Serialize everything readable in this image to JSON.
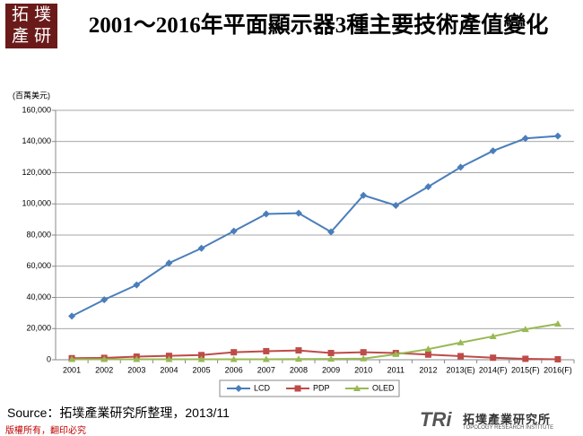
{
  "chart_data": {
    "type": "line",
    "title": "2001～2016年平面顯示器3種主要技術產值變化",
    "y_label": "(百萬美元)",
    "categories": [
      "2001",
      "2002",
      "2003",
      "2004",
      "2005",
      "2006",
      "2007",
      "2008",
      "2009",
      "2010",
      "2011",
      "2012",
      "2013(E)",
      "2014(F)",
      "2015(F)",
      "2016(F)"
    ],
    "series": [
      {
        "name": "LCD",
        "color": "#4a7ebb",
        "marker": "diamond",
        "values": [
          28000,
          38500,
          48000,
          62000,
          71500,
          82500,
          93500,
          94000,
          82000,
          105500,
          99000,
          111000,
          123500,
          134000,
          142000,
          143500
        ]
      },
      {
        "name": "PDP",
        "color": "#be4b48",
        "marker": "square",
        "values": [
          1000,
          1200,
          2000,
          2500,
          3000,
          4800,
          5500,
          6000,
          4300,
          4800,
          4300,
          3300,
          2300,
          1300,
          600,
          300
        ]
      },
      {
        "name": "OLED",
        "color": "#98b954",
        "marker": "triangle",
        "values": [
          300,
          300,
          300,
          300,
          300,
          300,
          300,
          400,
          500,
          700,
          3500,
          6800,
          11000,
          15000,
          19500,
          23000
        ]
      }
    ],
    "ylim": [
      0,
      160000
    ],
    "yticks": [
      0,
      {
        "value": 20000,
        "label": "20,000"
      },
      {
        "value": 40000,
        "label": "40,000"
      },
      {
        "value": 60000,
        "label": "60,000"
      },
      {
        "value": 80000,
        "label": "80,000"
      },
      {
        "value": 100000,
        "label": "100,000"
      },
      {
        "value": 120000,
        "label": "120,000"
      },
      {
        "value": 140000,
        "label": "140,000"
      },
      {
        "value": 160000,
        "label": "160,000"
      }
    ],
    "grid": true,
    "legend": "bottom"
  },
  "logo": [
    "拓 墣",
    "產 研"
  ],
  "source": "Source：拓墣產業研究所整理，2013/11",
  "footer": "版權所有，翻印必究",
  "brand": {
    "mark": "TRi",
    "name": "拓墣產業研究所",
    "english": "TOPOLOGY RESEARCH INSTITUTE"
  }
}
